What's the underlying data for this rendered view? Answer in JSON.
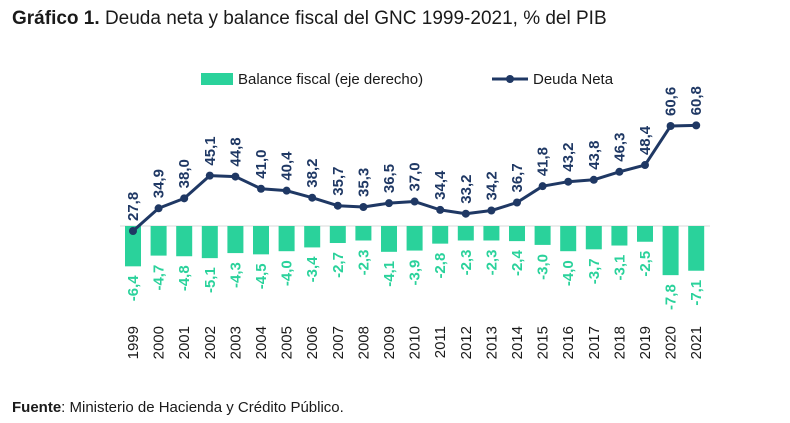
{
  "title": {
    "prefix": "Gráfico 1.",
    "text": "Deuda neta y balance fiscal del GNC 1999-2021, % del PIB"
  },
  "source": {
    "prefix": "Fuente",
    "text": ": Ministerio de Hacienda y Crédito Público."
  },
  "colors": {
    "debt_line": "#1f3864",
    "balance_bar": "#2ad29b"
  },
  "chart_data": {
    "type": "bar",
    "categories": [
      "1999",
      "2000",
      "2001",
      "2002",
      "2003",
      "2004",
      "2005",
      "2006",
      "2007",
      "2008",
      "2009",
      "2010",
      "2011",
      "2012",
      "2013",
      "2014",
      "2015",
      "2016",
      "2017",
      "2018",
      "2019",
      "2020",
      "2021"
    ],
    "series": [
      {
        "name": "Balance fiscal (eje derecho)",
        "type": "bar",
        "axis": "right",
        "values": [
          -6.4,
          -4.7,
          -4.8,
          -5.1,
          -4.3,
          -4.5,
          -4.0,
          -3.4,
          -2.7,
          -2.3,
          -4.1,
          -3.9,
          -2.8,
          -2.3,
          -2.3,
          -2.4,
          -3.0,
          -4.0,
          -3.7,
          -3.1,
          -2.5,
          -7.8,
          -7.1
        ],
        "labels": [
          "-6,4",
          "-4,7",
          "-4,8",
          "-5,1",
          "-4,3",
          "-4,5",
          "-4,0",
          "-3,4",
          "-2,7",
          "-2,3",
          "-4,1",
          "-3,9",
          "-2,8",
          "-2,3",
          "-2,3",
          "-2,4",
          "-3,0",
          "-4,0",
          "-3,7",
          "-3,1",
          "-2,5",
          "-7,8",
          "-7,1"
        ]
      },
      {
        "name": "Deuda Neta",
        "type": "line",
        "axis": "left",
        "values": [
          27.8,
          34.9,
          38.0,
          45.1,
          44.8,
          41.0,
          40.4,
          38.2,
          35.7,
          35.3,
          36.5,
          37.0,
          34.4,
          33.2,
          34.2,
          36.7,
          41.8,
          43.2,
          43.8,
          46.3,
          48.4,
          60.6,
          60.8
        ],
        "labels": [
          "27,8",
          "34,9",
          "38,0",
          "45,1",
          "44,8",
          "41,0",
          "40,4",
          "38,2",
          "35,7",
          "35,3",
          "36,5",
          "37,0",
          "34,4",
          "33,2",
          "34,2",
          "36,7",
          "41,8",
          "43,2",
          "43,8",
          "46,3",
          "48,4",
          "60,6",
          "60,8"
        ]
      }
    ],
    "legend_position": "top",
    "grid": false
  }
}
